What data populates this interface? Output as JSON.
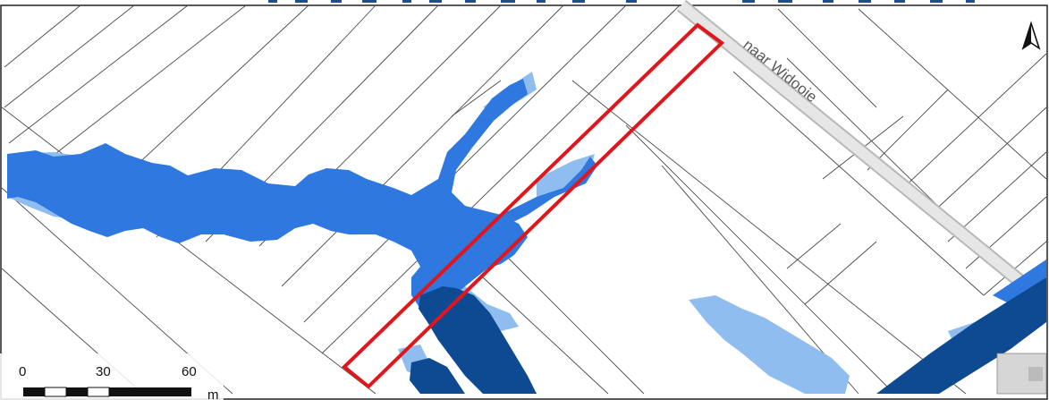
{
  "map": {
    "road_label": "naar Widooie",
    "north_arrow": "north-arrow-icon",
    "scale_bar": {
      "ticks": [
        "0",
        "30",
        "60"
      ],
      "unit": "m"
    },
    "colors": {
      "flood_light": "#8fbdf0",
      "flood_medium": "#2e78df",
      "flood_dark": "#0d4a92",
      "study_area_outline": "#e0161c",
      "parcel_lines": "#4a4a4a",
      "road": "#c8c8c8"
    }
  }
}
